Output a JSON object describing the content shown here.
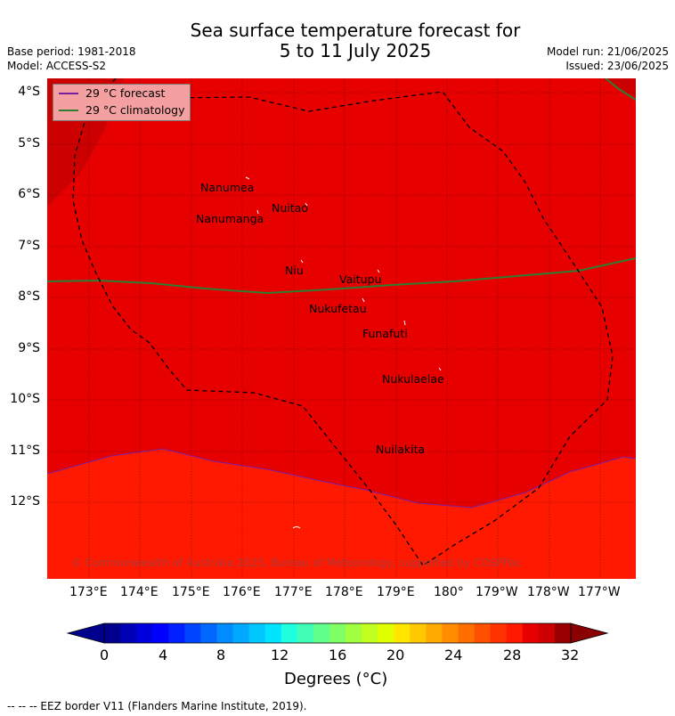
{
  "header": {
    "title_line1": "Sea surface temperature forecast for",
    "title_line2": "5 to 11 July 2025",
    "base_period": "Base period: 1981-2018",
    "model": "Model: ACCESS-S2",
    "model_run": "Model run: 21/06/2025",
    "issued": "Issued: 23/06/2025"
  },
  "map": {
    "lat_labels": [
      "4°S",
      "5°S",
      "6°S",
      "7°S",
      "8°S",
      "9°S",
      "10°S",
      "11°S",
      "12°S"
    ],
    "lon_labels": [
      "173°E",
      "174°E",
      "175°E",
      "176°E",
      "177°E",
      "178°E",
      "179°E",
      "180°",
      "179°W",
      "178°W",
      "177°W"
    ],
    "places": [
      "Nanumea",
      "Nuitao",
      "Nanumanga",
      "Niu",
      "Vaitupu",
      "Nukufetau",
      "Funafuti",
      "Nukulaelae",
      "Nuilakita"
    ],
    "legend": {
      "forecast": "29 °C  forecast",
      "climatology": "29 °C  climatology",
      "forecast_color": "#7b1fa2",
      "climatology_color": "#2e7d32"
    },
    "copyright": "© Commonwealth of Australia 2025, Bureau of Meteorology, supported by COSPPac",
    "fill_colors": {
      "main": "#e60000",
      "south": "#ff1900",
      "dark": "#cc0000"
    }
  },
  "colorbar": {
    "ticks": [
      "0",
      "4",
      "8",
      "12",
      "16",
      "20",
      "24",
      "28",
      "32"
    ],
    "title": "Degrees (°C)",
    "colors": [
      "#00008c",
      "#0000b4",
      "#0000dc",
      "#0000ff",
      "#0020ff",
      "#0044ff",
      "#0068ff",
      "#008cff",
      "#00a8ff",
      "#00c8ff",
      "#00e4ff",
      "#1effe0",
      "#40ffb4",
      "#60ff8c",
      "#80ff64",
      "#a0ff40",
      "#c0ff20",
      "#e0ff00",
      "#ffe600",
      "#ffc800",
      "#ffaa00",
      "#ff8c00",
      "#ff6e00",
      "#ff5000",
      "#ff3200",
      "#ff1900",
      "#e60000",
      "#cc0000",
      "#990000"
    ],
    "low_color": "#00008c",
    "high_color": "#8b0000"
  },
  "footer": {
    "eez_note": "--  --  -- EEZ border V11 (Flanders Marine Institute, 2019)."
  }
}
